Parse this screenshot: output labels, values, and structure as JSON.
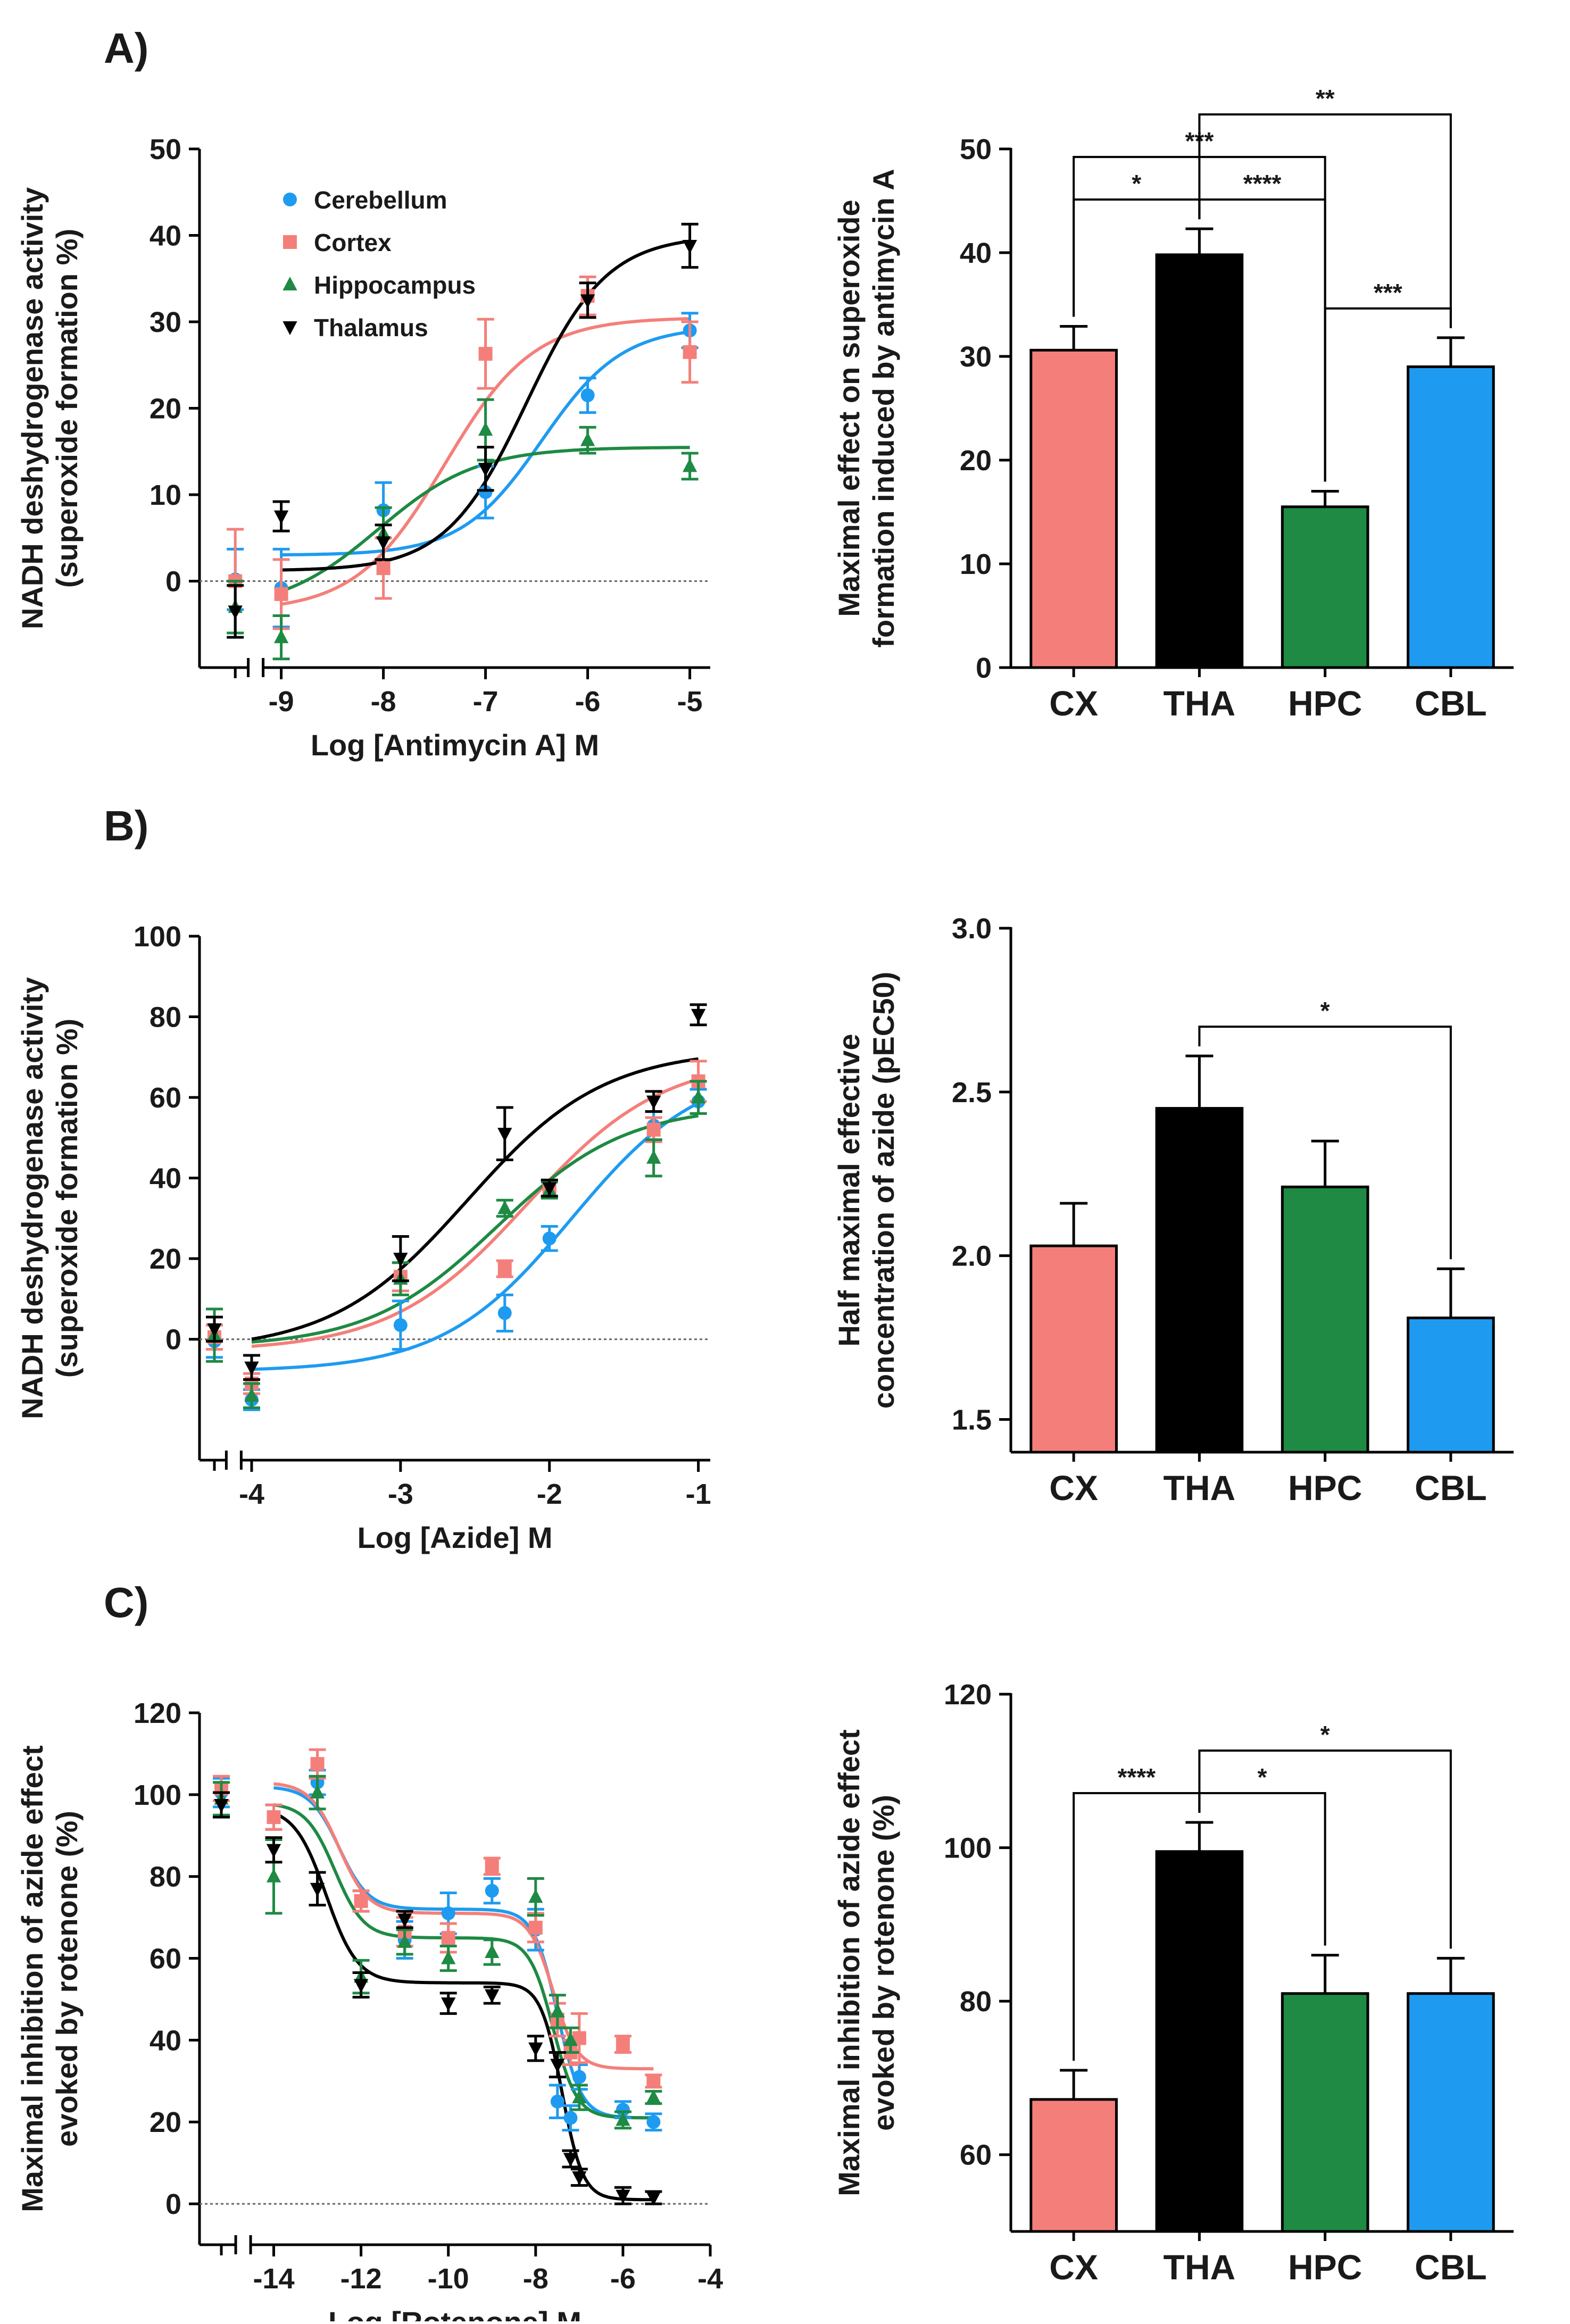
{
  "colors": {
    "CX": "#F47F7A",
    "THA": "#000000",
    "HPC": "#1E8A43",
    "CBL": "#1E9BF0",
    "Cerebellum": "#1E9BF0",
    "Cortex": "#F47F7A",
    "Hippocampus": "#1E8A43",
    "Thalamus": "#000000"
  },
  "chart_data": [
    {
      "id": "A-left",
      "panel_label": "A)",
      "type": "scatter",
      "title": "",
      "xlabel": "Log [Antimycin A] M",
      "ylabel": [
        "NADH deshydrogenase activity",
        "(superoxide formation %)"
      ],
      "ylim": [
        -10,
        50
      ],
      "yticks": [
        0,
        10,
        20,
        30,
        40,
        50
      ],
      "ytick_labels": [
        "0",
        "10",
        "20",
        "30",
        "40",
        "50"
      ],
      "xlim": [
        -9.8,
        -4.8
      ],
      "xticks": [
        -9,
        -8,
        -7,
        -6,
        -5
      ],
      "xtick_labels": [
        "-9",
        "-8",
        "-7",
        "-6",
        "-5"
      ],
      "control_x": -9.45,
      "axis_break": -9.25,
      "legend": [
        "Cerebellum",
        "Cortex",
        "Hippocampus",
        "Thalamus"
      ],
      "series": [
        {
          "name": "Cerebellum",
          "marker": "circle",
          "x": [
            -9.45,
            -9,
            -8,
            -7,
            -6,
            -5
          ],
          "y": [
            0.2,
            -0.8,
            8.2,
            10.3,
            21.5,
            29.0
          ],
          "err": [
            3.5,
            4.5,
            3.2,
            3.0,
            2.0,
            2.0
          ],
          "fit": {
            "bottom": 3.0,
            "top": 29.5,
            "logec50": -6.45,
            "hill": 1.1
          }
        },
        {
          "name": "Cortex",
          "marker": "square",
          "x": [
            -9.45,
            -9,
            -8,
            -7,
            -6,
            -5
          ],
          "y": [
            0.0,
            -1.5,
            1.5,
            26.3,
            33.0,
            26.5
          ],
          "err": [
            6.0,
            4.0,
            3.5,
            4.0,
            2.2,
            3.5
          ],
          "fit": {
            "bottom": -3.5,
            "top": 30.5,
            "logec50": -7.4,
            "hill": 1.0
          }
        },
        {
          "name": "Hippocampus",
          "marker": "triangle",
          "x": [
            -9.45,
            -9,
            -8,
            -7,
            -6,
            -5
          ],
          "y": [
            -3.0,
            -6.5,
            5.5,
            17.5,
            16.3,
            13.3
          ],
          "err": [
            3.0,
            2.5,
            3.0,
            3.5,
            1.5,
            1.5
          ],
          "fit": {
            "bottom": -3.5,
            "top": 15.5,
            "logec50": -8.05,
            "hill": 0.9
          }
        },
        {
          "name": "Thalamus",
          "marker": "triangle-down",
          "x": [
            -9.45,
            -9,
            -8,
            -7,
            -6,
            -5
          ],
          "y": [
            -3.5,
            7.5,
            4.5,
            13.0,
            32.5,
            38.8
          ],
          "err": [
            3.0,
            1.7,
            2.0,
            2.5,
            2.0,
            2.5
          ],
          "fit": {
            "bottom": 1.2,
            "top": 40.0,
            "logec50": -6.6,
            "hill": 1.1
          }
        }
      ]
    },
    {
      "id": "A-right",
      "type": "bar",
      "title": "",
      "xlabel": "",
      "ylabel": [
        "Maximal effect on superoxide",
        "formation induced by antimycin A"
      ],
      "categories": [
        "CX",
        "THA",
        "HPC",
        "CBL"
      ],
      "values": [
        30.6,
        39.8,
        15.5,
        29.0
      ],
      "errors": [
        2.3,
        2.5,
        1.5,
        2.8
      ],
      "ylim": [
        0,
        50
      ],
      "yticks": [
        0,
        10,
        20,
        30,
        40,
        50
      ],
      "ytick_labels": [
        "0",
        "10",
        "20",
        "30",
        "40",
        "50"
      ],
      "significance": [
        {
          "from": 0,
          "to": 1,
          "label": "*",
          "level": 1
        },
        {
          "from": 1,
          "to": 2,
          "label": "****",
          "level": 1
        },
        {
          "from": 2,
          "to": 3,
          "label": "***",
          "level": 1
        },
        {
          "from": 0,
          "to": 2,
          "label": "***",
          "level": 2
        },
        {
          "from": 1,
          "to": 3,
          "label": "**",
          "level": 3
        }
      ]
    },
    {
      "id": "B-left",
      "panel_label": "B)",
      "type": "scatter",
      "title": "",
      "xlabel": "Log [Azide] M",
      "ylabel": [
        "NADH deshydrogenase activity",
        "(superoxide formation %)"
      ],
      "ylim": [
        -30,
        100
      ],
      "yticks": [
        0,
        20,
        40,
        60,
        80,
        100
      ],
      "ytick_labels": [
        "0",
        "20",
        "40",
        "60",
        "80",
        "100"
      ],
      "xlim": [
        -4.35,
        -0.92
      ],
      "xticks": [
        -4,
        -3,
        -2,
        -1
      ],
      "xtick_labels": [
        "-4",
        "-3",
        "-2",
        "-1"
      ],
      "control_x": -4.25,
      "axis_break": -4.12,
      "legend": [],
      "series": [
        {
          "name": "Cerebellum",
          "marker": "circle",
          "x": [
            -4.25,
            -4,
            -3,
            -2.3,
            -2,
            -1.3,
            -1
          ],
          "y": [
            -0.5,
            -15.0,
            3.5,
            6.5,
            25.0,
            53.0,
            59.0
          ],
          "err": [
            4.0,
            2.5,
            6.0,
            4.5,
            3.0,
            3.5,
            3.0
          ],
          "fit": {
            "bottom": -8.0,
            "top": 68.0,
            "logec50": -1.85,
            "hill": 1.0
          }
        },
        {
          "name": "Cortex",
          "marker": "square",
          "x": [
            -4.25,
            -4,
            -3,
            -2.3,
            -2,
            -1.3,
            -1
          ],
          "y": [
            0.5,
            -11.0,
            15.5,
            17.5,
            37.5,
            52.0,
            64.0
          ],
          "err": [
            3.0,
            2.5,
            3.5,
            2.0,
            2.0,
            3.0,
            5.0
          ],
          "fit": {
            "bottom": -3.0,
            "top": 70.0,
            "logec50": -2.15,
            "hill": 0.95
          }
        },
        {
          "name": "Hippocampus",
          "marker": "triangle",
          "x": [
            -4.25,
            -4,
            -3,
            -2.3,
            -2,
            -1.3,
            -1
          ],
          "y": [
            1.0,
            -14.0,
            15.0,
            32.5,
            37.0,
            45.0,
            60.0
          ],
          "err": [
            6.5,
            3.0,
            4.0,
            2.0,
            2.0,
            4.5,
            4.0
          ],
          "fit": {
            "bottom": -2.0,
            "top": 58.0,
            "logec50": -2.35,
            "hill": 1.0
          }
        },
        {
          "name": "Thalamus",
          "marker": "triangle-down",
          "x": [
            -4.25,
            -4,
            -3,
            -2.3,
            -2,
            -1.3,
            -1
          ],
          "y": [
            2.5,
            -7.0,
            20.0,
            51.0,
            37.5,
            59.0,
            80.5
          ],
          "err": [
            3.0,
            3.0,
            5.5,
            6.5,
            2.0,
            2.5,
            2.5
          ],
          "fit": {
            "bottom": -3.0,
            "top": 72.0,
            "logec50": -2.55,
            "hill": 0.95
          }
        }
      ]
    },
    {
      "id": "B-right",
      "type": "bar",
      "title": "",
      "xlabel": "",
      "ylabel": [
        "Half maximal effective",
        "concentration of azide (pEC50)"
      ],
      "categories": [
        "CX",
        "THA",
        "HPC",
        "CBL"
      ],
      "values": [
        2.03,
        2.45,
        2.21,
        1.81
      ],
      "errors": [
        0.13,
        0.16,
        0.14,
        0.15
      ],
      "ylim": [
        1.4,
        3.0
      ],
      "yticks": [
        1.5,
        2.0,
        2.5,
        3.0
      ],
      "ytick_labels": [
        "1.5",
        "2.0",
        "2.5",
        "3.0"
      ],
      "significance": [
        {
          "from": 1,
          "to": 3,
          "label": "*",
          "level": 1
        }
      ]
    },
    {
      "id": "C-left",
      "panel_label": "C)",
      "type": "scatter",
      "title": "",
      "xlabel": "Log [Rotenone] M",
      "ylabel": [
        "Maximal inhibition of azide effect",
        "evoked by rotenone (%)"
      ],
      "ylim": [
        -10,
        120
      ],
      "yticks": [
        0,
        20,
        40,
        60,
        80,
        100,
        120
      ],
      "ytick_labels": [
        "0",
        "20",
        "40",
        "60",
        "80",
        "100",
        "120"
      ],
      "xlim": [
        -15.7,
        -4
      ],
      "xticks": [
        -14,
        -12,
        -10,
        -8,
        -6,
        -4
      ],
      "xtick_labels": [
        "-14",
        "-12",
        "-10",
        "-8",
        "-6",
        "-4"
      ],
      "control_x": -15.2,
      "axis_break": -14.7,
      "legend": [],
      "series": [
        {
          "name": "Cerebellum",
          "marker": "circle",
          "x": [
            -15.2,
            -14,
            -13,
            -12,
            -11,
            -10,
            -9,
            -8,
            -7.5,
            -7.2,
            -7,
            -6,
            -5.3
          ],
          "y": [
            100.5,
            94.5,
            103.0,
            74.0,
            64.5,
            71.0,
            76.5,
            67.0,
            25.0,
            21.0,
            31.0,
            23.0,
            20.0
          ],
          "err": [
            3.5,
            3.0,
            3.0,
            2.5,
            4.5,
            5.0,
            3.0,
            5.0,
            4.0,
            3.0,
            3.0,
            2.0,
            2.0
          ],
          "fit": {
            "bottom": 21.0,
            "mid": 72.0,
            "top": 102.0,
            "logec50a": -12.5,
            "logec50b": -7.5,
            "hilla": 1.3,
            "hillb": 1.6
          }
        },
        {
          "name": "Cortex",
          "marker": "square",
          "x": [
            -15.2,
            -14,
            -13,
            -12,
            -11,
            -10,
            -9,
            -8,
            -7.5,
            -7.2,
            -7,
            -6,
            -5.3
          ],
          "y": [
            101.5,
            94.5,
            107.5,
            74.0,
            66.5,
            65.0,
            82.5,
            67.5,
            45.0,
            37.0,
            40.5,
            39.0,
            30.0
          ],
          "err": [
            3.0,
            3.0,
            3.5,
            2.5,
            3.5,
            3.5,
            2.0,
            3.5,
            4.0,
            3.0,
            6.0,
            2.0,
            1.5
          ],
          "fit": {
            "bottom": 33.0,
            "mid": 71.0,
            "top": 103.0,
            "logec50a": -12.5,
            "logec50b": -7.6,
            "hilla": 1.3,
            "hillb": 1.6
          }
        },
        {
          "name": "Hippocampus",
          "marker": "triangle",
          "x": [
            -15.2,
            -14,
            -13,
            -12,
            -11,
            -10,
            -9,
            -8,
            -7.5,
            -7.2,
            -7,
            -6,
            -5.3
          ],
          "y": [
            99.0,
            80.0,
            100.5,
            55.5,
            64.0,
            60.0,
            61.5,
            75.0,
            47.0,
            40.0,
            26.0,
            20.5,
            26.0
          ],
          "err": [
            4.0,
            9.0,
            4.0,
            4.0,
            3.0,
            3.0,
            3.0,
            4.5,
            4.0,
            3.0,
            3.0,
            2.0,
            1.5
          ],
          "fit": {
            "bottom": 21.0,
            "mid": 65.0,
            "top": 98.0,
            "logec50a": -12.6,
            "logec50b": -7.6,
            "hilla": 1.3,
            "hillb": 1.6
          }
        },
        {
          "name": "Thalamus",
          "marker": "triangle-down",
          "x": [
            -15.2,
            -14,
            -13,
            -12,
            -11,
            -10,
            -9,
            -8,
            -7.5,
            -7.2,
            -7,
            -6,
            -5.3
          ],
          "y": [
            97.5,
            86.5,
            77.0,
            53.5,
            69.5,
            49.0,
            51.0,
            38.0,
            34.0,
            11.0,
            6.5,
            2.0,
            1.5
          ],
          "err": [
            3.0,
            3.0,
            4.0,
            3.0,
            2.0,
            2.5,
            2.0,
            3.0,
            3.0,
            2.0,
            2.0,
            2.0,
            1.5
          ],
          "fit": {
            "bottom": 1.0,
            "mid": 54.0,
            "top": 97.0,
            "logec50a": -12.8,
            "logec50b": -7.4,
            "hilla": 1.2,
            "hillb": 1.8
          }
        }
      ]
    },
    {
      "id": "C-right",
      "type": "bar",
      "title": "",
      "xlabel": "",
      "ylabel": [
        "Maximal inhibition of azide effect",
        "evoked by rotenone (%)"
      ],
      "categories": [
        "CX",
        "THA",
        "HPC",
        "CBL"
      ],
      "values": [
        67.2,
        99.5,
        81.0,
        81.0
      ],
      "errors": [
        3.8,
        3.8,
        5.0,
        4.6
      ],
      "ylim": [
        50,
        120
      ],
      "yticks": [
        60,
        80,
        100,
        120
      ],
      "ytick_labels": [
        "60",
        "80",
        "100",
        "120"
      ],
      "significance": [
        {
          "from": 0,
          "to": 1,
          "label": "****",
          "level": 1
        },
        {
          "from": 1,
          "to": 2,
          "label": "*",
          "level": 1
        },
        {
          "from": 1,
          "to": 3,
          "label": "*",
          "level": 2
        }
      ]
    }
  ]
}
